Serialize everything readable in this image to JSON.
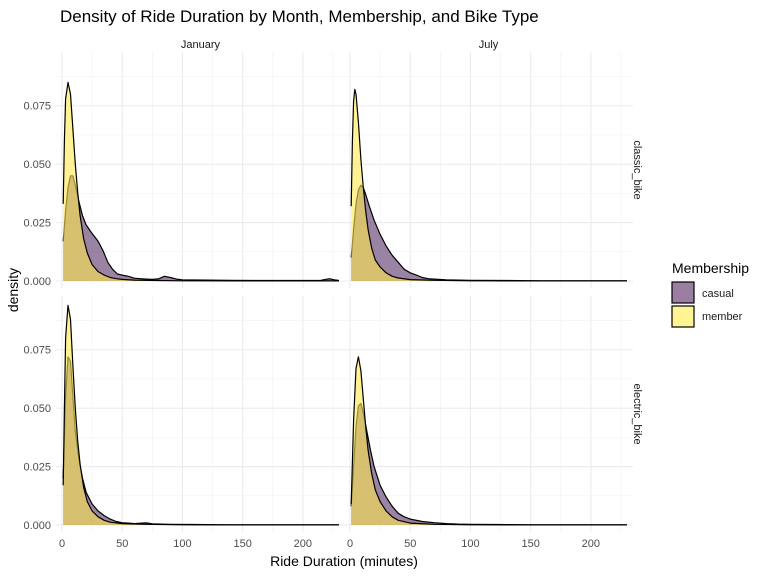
{
  "chart_data": {
    "type": "area",
    "title": "Density of Ride Duration by Month, Membership, and Bike Type",
    "xlabel": "Ride Duration (minutes)",
    "ylabel": "density",
    "xlim": [
      -5,
      235
    ],
    "ylim": [
      -0.003,
      0.098
    ],
    "x_ticks": [
      0,
      50,
      100,
      150,
      200
    ],
    "x_tick_labels": [
      "0",
      "50",
      "100",
      "150",
      "200"
    ],
    "y_ticks": [
      0,
      0.025,
      0.05,
      0.075
    ],
    "y_tick_labels": [
      "0.000",
      "0.025",
      "0.050",
      "0.075"
    ],
    "grid": true,
    "legend": {
      "title": "Membership",
      "position": "right",
      "items": [
        {
          "label": "casual",
          "color": "#9a7fa2"
        },
        {
          "label": "member",
          "color": "#fff493"
        }
      ]
    },
    "facet_columns": [
      "January",
      "July"
    ],
    "facet_rows": [
      "classic_bike",
      "electric_bike"
    ],
    "series_colors": {
      "casual": "rgba(102,64,114,0.65)",
      "member": "rgba(255,234,77,0.6)"
    },
    "panels": [
      {
        "month": "January",
        "bike": "classic_bike",
        "series": [
          {
            "name": "casual",
            "points": [
              [
                1,
                0.017
              ],
              [
                3,
                0.03
              ],
              [
                5,
                0.04
              ],
              [
                7,
                0.045
              ],
              [
                9,
                0.045
              ],
              [
                11,
                0.041
              ],
              [
                14,
                0.034
              ],
              [
                17,
                0.028
              ],
              [
                20,
                0.024
              ],
              [
                24,
                0.021
              ],
              [
                27,
                0.019
              ],
              [
                30,
                0.017
              ],
              [
                34,
                0.013
              ],
              [
                38,
                0.008
              ],
              [
                42,
                0.005
              ],
              [
                46,
                0.003
              ],
              [
                50,
                0.0025
              ],
              [
                55,
                0.002
              ],
              [
                60,
                0.0012
              ],
              [
                65,
                0.001
              ],
              [
                70,
                0.0008
              ],
              [
                75,
                0.0007
              ],
              [
                80,
                0.0009
              ],
              [
                85,
                0.002
              ],
              [
                90,
                0.0015
              ],
              [
                95,
                0.0008
              ],
              [
                100,
                0.0005
              ],
              [
                120,
                0.0004
              ],
              [
                140,
                0.0003
              ],
              [
                160,
                0.0002
              ],
              [
                180,
                0.0002
              ],
              [
                200,
                0.0002
              ],
              [
                215,
                0.0003
              ],
              [
                222,
                0.001
              ],
              [
                226,
                0.0005
              ],
              [
                230,
                0.0002
              ]
            ]
          },
          {
            "name": "member",
            "points": [
              [
                1,
                0.033
              ],
              [
                2,
                0.06
              ],
              [
                3,
                0.078
              ],
              [
                5,
                0.085
              ],
              [
                7,
                0.08
              ],
              [
                9,
                0.065
              ],
              [
                11,
                0.05
              ],
              [
                13,
                0.038
              ],
              [
                15,
                0.028
              ],
              [
                18,
                0.018
              ],
              [
                21,
                0.012
              ],
              [
                25,
                0.007
              ],
              [
                30,
                0.004
              ],
              [
                35,
                0.0025
              ],
              [
                40,
                0.0015
              ],
              [
                45,
                0.001
              ],
              [
                50,
                0.0007
              ],
              [
                60,
                0.0004
              ],
              [
                80,
                0.0002
              ],
              [
                100,
                0.0001
              ],
              [
                150,
                5e-05
              ],
              [
                200,
                3e-05
              ],
              [
                230,
                2e-05
              ]
            ]
          }
        ]
      },
      {
        "month": "July",
        "bike": "classic_bike",
        "series": [
          {
            "name": "casual",
            "points": [
              [
                1,
                0.01
              ],
              [
                3,
                0.022
              ],
              [
                5,
                0.033
              ],
              [
                7,
                0.039
              ],
              [
                9,
                0.041
              ],
              [
                11,
                0.04
              ],
              [
                13,
                0.037
              ],
              [
                16,
                0.032
              ],
              [
                20,
                0.026
              ],
              [
                25,
                0.02
              ],
              [
                30,
                0.015
              ],
              [
                35,
                0.011
              ],
              [
                40,
                0.008
              ],
              [
                45,
                0.005
              ],
              [
                50,
                0.0035
              ],
              [
                55,
                0.0025
              ],
              [
                60,
                0.0015
              ],
              [
                65,
                0.001
              ],
              [
                70,
                0.0008
              ],
              [
                80,
                0.0005
              ],
              [
                100,
                0.0003
              ],
              [
                130,
                0.0002
              ],
              [
                160,
                0.0001
              ],
              [
                200,
                0.0001
              ],
              [
                230,
                5e-05
              ]
            ]
          },
          {
            "name": "member",
            "points": [
              [
                1,
                0.032
              ],
              [
                2,
                0.06
              ],
              [
                3,
                0.077
              ],
              [
                4,
                0.082
              ],
              [
                5,
                0.08
              ],
              [
                7,
                0.068
              ],
              [
                9,
                0.052
              ],
              [
                11,
                0.04
              ],
              [
                13,
                0.03
              ],
              [
                15,
                0.022
              ],
              [
                18,
                0.014
              ],
              [
                21,
                0.009
              ],
              [
                25,
                0.006
              ],
              [
                30,
                0.0035
              ],
              [
                35,
                0.002
              ],
              [
                40,
                0.0013
              ],
              [
                50,
                0.0006
              ],
              [
                70,
                0.0003
              ],
              [
                100,
                0.0001
              ],
              [
                150,
                5e-05
              ],
              [
                230,
                2e-05
              ]
            ]
          }
        ]
      },
      {
        "month": "January",
        "bike": "electric_bike",
        "series": [
          {
            "name": "casual",
            "points": [
              [
                1,
                0.02
              ],
              [
                3,
                0.055
              ],
              [
                5,
                0.072
              ],
              [
                7,
                0.07
              ],
              [
                9,
                0.055
              ],
              [
                11,
                0.04
              ],
              [
                14,
                0.028
              ],
              [
                17,
                0.02
              ],
              [
                20,
                0.014
              ],
              [
                25,
                0.009
              ],
              [
                30,
                0.006
              ],
              [
                35,
                0.004
              ],
              [
                40,
                0.0025
              ],
              [
                45,
                0.0015
              ],
              [
                50,
                0.001
              ],
              [
                55,
                0.0008
              ],
              [
                60,
                0.0006
              ],
              [
                70,
                0.0009
              ],
              [
                75,
                0.0005
              ],
              [
                90,
                0.0003
              ],
              [
                110,
                0.0002
              ],
              [
                140,
                0.0001
              ],
              [
                170,
                0.0001
              ],
              [
                200,
                5e-05
              ],
              [
                230,
                3e-05
              ]
            ]
          },
          {
            "name": "member",
            "points": [
              [
                1,
                0.017
              ],
              [
                2,
                0.05
              ],
              [
                3,
                0.08
              ],
              [
                5,
                0.094
              ],
              [
                7,
                0.088
              ],
              [
                9,
                0.068
              ],
              [
                11,
                0.05
              ],
              [
                13,
                0.036
              ],
              [
                15,
                0.026
              ],
              [
                18,
                0.016
              ],
              [
                21,
                0.01
              ],
              [
                25,
                0.006
              ],
              [
                30,
                0.0035
              ],
              [
                35,
                0.002
              ],
              [
                40,
                0.0012
              ],
              [
                50,
                0.0006
              ],
              [
                70,
                0.0003
              ],
              [
                100,
                0.0001
              ],
              [
                150,
                5e-05
              ],
              [
                230,
                2e-05
              ]
            ]
          }
        ]
      },
      {
        "month": "July",
        "bike": "electric_bike",
        "series": [
          {
            "name": "casual",
            "points": [
              [
                1,
                0.008
              ],
              [
                3,
                0.025
              ],
              [
                5,
                0.042
              ],
              [
                7,
                0.051
              ],
              [
                9,
                0.052
              ],
              [
                11,
                0.048
              ],
              [
                14,
                0.04
              ],
              [
                17,
                0.032
              ],
              [
                20,
                0.025
              ],
              [
                25,
                0.017
              ],
              [
                30,
                0.012
              ],
              [
                35,
                0.008
              ],
              [
                40,
                0.005
              ],
              [
                45,
                0.0035
              ],
              [
                50,
                0.0025
              ],
              [
                60,
                0.0015
              ],
              [
                70,
                0.001
              ],
              [
                80,
                0.0006
              ],
              [
                90,
                0.0004
              ],
              [
                100,
                0.0003
              ],
              [
                120,
                0.0002
              ],
              [
                150,
                0.0001
              ],
              [
                200,
                5e-05
              ],
              [
                230,
                3e-05
              ]
            ]
          },
          {
            "name": "member",
            "points": [
              [
                1,
                0.009
              ],
              [
                3,
                0.045
              ],
              [
                5,
                0.067
              ],
              [
                7,
                0.072
              ],
              [
                9,
                0.066
              ],
              [
                11,
                0.054
              ],
              [
                13,
                0.042
              ],
              [
                15,
                0.032
              ],
              [
                18,
                0.022
              ],
              [
                21,
                0.015
              ],
              [
                25,
                0.01
              ],
              [
                30,
                0.006
              ],
              [
                35,
                0.0035
              ],
              [
                40,
                0.002
              ],
              [
                50,
                0.0008
              ],
              [
                70,
                0.0003
              ],
              [
                100,
                0.0001
              ],
              [
                150,
                5e-05
              ],
              [
                230,
                2e-05
              ]
            ]
          }
        ]
      }
    ]
  }
}
